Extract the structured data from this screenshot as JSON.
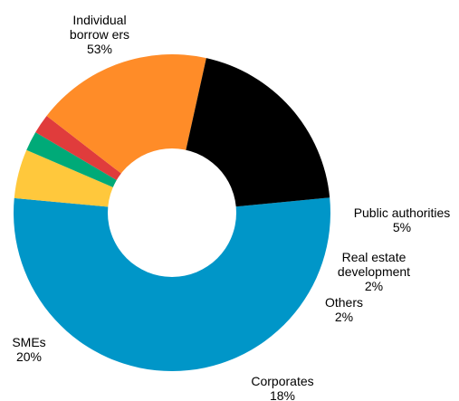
{
  "chart_data": {
    "type": "pie",
    "donut": true,
    "title": "",
    "legend": "none",
    "slices": [
      {
        "label_lines": [
          "Individual",
          "borrow ers"
        ],
        "value_label": "53%",
        "value": 53,
        "color": "#0096C8"
      },
      {
        "label_lines": [
          "Public authorities"
        ],
        "value_label": "5%",
        "value": 5,
        "color": "#FFC83C"
      },
      {
        "label_lines": [
          "Real estate",
          "development"
        ],
        "value_label": "2%",
        "value": 2,
        "color": "#00AA78"
      },
      {
        "label_lines": [
          "Others"
        ],
        "value_label": "2%",
        "value": 2,
        "color": "#E03C3C"
      },
      {
        "label_lines": [
          "Corporates"
        ],
        "value_label": "18%",
        "value": 18,
        "color": "#FF8C28"
      },
      {
        "label_lines": [
          "SMEs"
        ],
        "value_label": "20%",
        "value": 20,
        "color": "#000000"
      }
    ]
  }
}
